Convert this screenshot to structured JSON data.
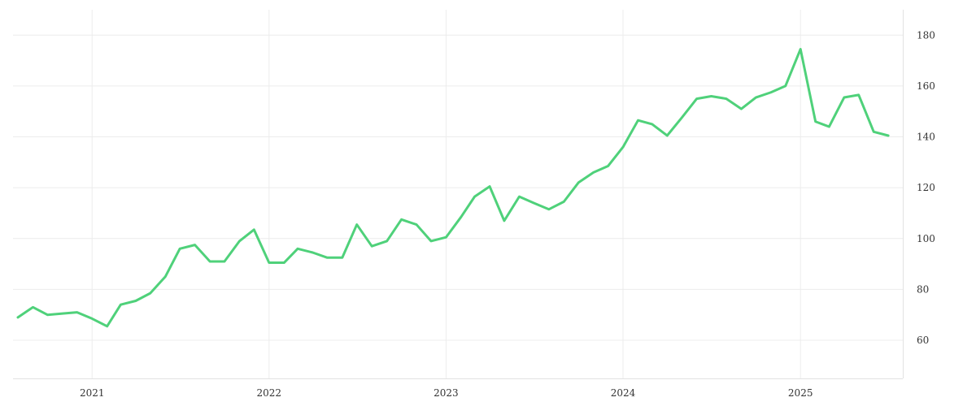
{
  "chart_data": {
    "type": "line",
    "title": "",
    "xlabel": "",
    "ylabel": "",
    "x_axis_type": "date",
    "y_axis_position": "right",
    "grid": true,
    "legend": "none",
    "xlim": [
      "2020-08-01",
      "2025-07-31"
    ],
    "ylim": [
      45,
      190
    ],
    "x_ticks": [
      "2021",
      "2022",
      "2023",
      "2024",
      "2025"
    ],
    "y_ticks": [
      60,
      80,
      100,
      120,
      140,
      160,
      180
    ],
    "colors": {
      "series": "#4fd17a",
      "grid": "#ececec",
      "text": "#333333"
    },
    "series": [
      {
        "points": [
          [
            "2020-08-01",
            69
          ],
          [
            "2020-09-01",
            73
          ],
          [
            "2020-10-01",
            70
          ],
          [
            "2020-11-01",
            70.5
          ],
          [
            "2020-12-01",
            71
          ],
          [
            "2021-01-01",
            68.5
          ],
          [
            "2021-02-01",
            65.5
          ],
          [
            "2021-03-01",
            74
          ],
          [
            "2021-04-01",
            75.5
          ],
          [
            "2021-05-01",
            78.5
          ],
          [
            "2021-06-01",
            85
          ],
          [
            "2021-07-01",
            96
          ],
          [
            "2021-08-01",
            97.5
          ],
          [
            "2021-09-01",
            91
          ],
          [
            "2021-10-01",
            91
          ],
          [
            "2021-11-01",
            99
          ],
          [
            "2021-12-01",
            103.5
          ],
          [
            "2022-01-01",
            90.5
          ],
          [
            "2022-02-01",
            90.5
          ],
          [
            "2022-03-01",
            96
          ],
          [
            "2022-04-01",
            94.5
          ],
          [
            "2022-05-01",
            92.5
          ],
          [
            "2022-06-01",
            92.5
          ],
          [
            "2022-07-01",
            105.5
          ],
          [
            "2022-08-01",
            97
          ],
          [
            "2022-09-01",
            99
          ],
          [
            "2022-10-01",
            107.5
          ],
          [
            "2022-11-01",
            105.5
          ],
          [
            "2022-12-01",
            99
          ],
          [
            "2023-01-01",
            100.5
          ],
          [
            "2023-02-01",
            108.5
          ],
          [
            "2023-03-01",
            116.5
          ],
          [
            "2023-04-01",
            120.5
          ],
          [
            "2023-05-01",
            107
          ],
          [
            "2023-06-01",
            116.5
          ],
          [
            "2023-07-01",
            114
          ],
          [
            "2023-08-01",
            111.5
          ],
          [
            "2023-09-01",
            114.5
          ],
          [
            "2023-10-01",
            122
          ],
          [
            "2023-11-01",
            126
          ],
          [
            "2023-12-01",
            128.5
          ],
          [
            "2024-01-01",
            136
          ],
          [
            "2024-02-01",
            146.5
          ],
          [
            "2024-03-01",
            145
          ],
          [
            "2024-04-01",
            140.5
          ],
          [
            "2024-05-01",
            147.5
          ],
          [
            "2024-06-01",
            155
          ],
          [
            "2024-07-01",
            156
          ],
          [
            "2024-08-01",
            155
          ],
          [
            "2024-09-01",
            151
          ],
          [
            "2024-10-01",
            155.5
          ],
          [
            "2024-11-01",
            157.5
          ],
          [
            "2024-12-01",
            160
          ],
          [
            "2025-01-01",
            174.5
          ],
          [
            "2025-02-01",
            146
          ],
          [
            "2025-03-01",
            144
          ],
          [
            "2025-04-01",
            155.5
          ],
          [
            "2025-05-01",
            156.5
          ],
          [
            "2025-06-01",
            142
          ],
          [
            "2025-07-01",
            140.5
          ]
        ]
      }
    ]
  }
}
